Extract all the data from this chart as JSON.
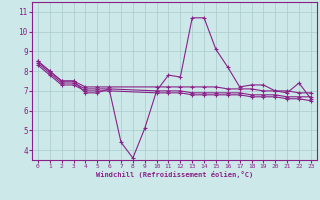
{
  "xlabel": "Windchill (Refroidissement éolien,°C)",
  "background_color": "#cce8e8",
  "line_color": "#882288",
  "grid_color": "#aacccc",
  "xlim": [
    -0.5,
    23.5
  ],
  "ylim": [
    3.5,
    11.5
  ],
  "xticks": [
    0,
    1,
    2,
    3,
    4,
    5,
    6,
    7,
    8,
    9,
    10,
    11,
    12,
    13,
    14,
    15,
    16,
    17,
    18,
    19,
    20,
    21,
    22,
    23
  ],
  "yticks": [
    4,
    5,
    6,
    7,
    8,
    9,
    10,
    11
  ],
  "lines": [
    {
      "x": [
        0,
        1,
        2,
        3,
        4,
        5,
        6,
        7,
        8,
        9,
        10,
        11,
        12,
        13,
        14,
        15,
        16,
        17,
        18,
        19,
        20,
        21,
        22,
        23
      ],
      "y": [
        8.5,
        8.0,
        7.5,
        7.5,
        6.9,
        6.9,
        7.1,
        4.4,
        3.6,
        5.1,
        7.0,
        7.8,
        7.7,
        10.7,
        10.7,
        9.1,
        8.2,
        7.2,
        7.3,
        7.3,
        7.0,
        6.9,
        7.4,
        6.6
      ]
    },
    {
      "x": [
        0,
        1,
        2,
        3,
        4,
        5,
        6,
        10,
        11,
        12,
        13,
        14,
        15,
        16,
        17,
        18,
        19,
        20,
        21,
        22,
        23
      ],
      "y": [
        8.5,
        8.0,
        7.5,
        7.5,
        7.2,
        7.2,
        7.2,
        7.2,
        7.2,
        7.2,
        7.2,
        7.2,
        7.2,
        7.1,
        7.1,
        7.1,
        7.0,
        7.0,
        7.0,
        6.9,
        6.9
      ]
    },
    {
      "x": [
        0,
        1,
        2,
        3,
        4,
        5,
        6,
        10,
        11,
        12,
        13,
        14,
        15,
        16,
        17,
        18,
        19,
        20,
        21,
        22,
        23
      ],
      "y": [
        8.4,
        7.9,
        7.4,
        7.4,
        7.1,
        7.1,
        7.1,
        7.0,
        7.0,
        7.0,
        6.9,
        6.9,
        6.9,
        6.9,
        6.9,
        6.8,
        6.8,
        6.8,
        6.7,
        6.7,
        6.7
      ]
    },
    {
      "x": [
        0,
        1,
        2,
        3,
        4,
        5,
        6,
        10,
        11,
        12,
        13,
        14,
        15,
        16,
        17,
        18,
        19,
        20,
        21,
        22,
        23
      ],
      "y": [
        8.3,
        7.8,
        7.3,
        7.3,
        7.0,
        7.0,
        7.0,
        6.9,
        6.9,
        6.9,
        6.8,
        6.8,
        6.8,
        6.8,
        6.8,
        6.7,
        6.7,
        6.7,
        6.6,
        6.6,
        6.5
      ]
    }
  ]
}
